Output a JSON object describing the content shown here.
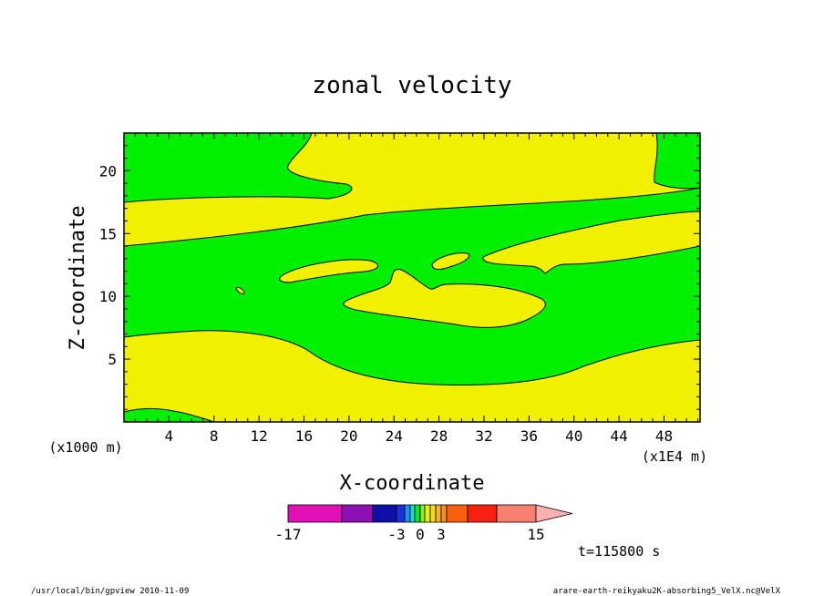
{
  "chart_data": {
    "type": "contour",
    "title": "zonal velocity",
    "xlabel": "X-coordinate",
    "ylabel": "Z-coordinate",
    "x_units": "(x1E4 m)",
    "y_units": "(x1000 m)",
    "xlim": [
      0,
      51.2
    ],
    "ylim": [
      0,
      23
    ],
    "x_ticks": [
      4,
      8,
      12,
      16,
      20,
      24,
      28,
      32,
      36,
      40,
      44,
      48
    ],
    "y_ticks": [
      5,
      10,
      15,
      20
    ],
    "colorbar": {
      "levels": [
        -17,
        -13,
        -9,
        -6,
        -5,
        -4,
        -3,
        -2,
        -1,
        0,
        1,
        2,
        3,
        5,
        7,
        11,
        15
      ],
      "labels": [
        "-17",
        "-3",
        "0",
        "3",
        "15"
      ],
      "label_values": [
        -17,
        -3,
        0,
        3,
        15
      ],
      "colors": [
        "#e010b4",
        "#8c10b4",
        "#1010a8",
        "#1830e0",
        "#2090f0",
        "#10e0d8",
        "#10e030",
        "#90f010",
        "#e8f000",
        "#f8d820",
        "#f8b030",
        "#f89020",
        "#f86010",
        "#f82010",
        "#f88070",
        "#f8b0b0"
      ],
      "extend": "max"
    },
    "regions": [
      {
        "value_range": [
          0,
          1
        ],
        "color": "#f0f000"
      },
      {
        "value_range": [
          -1,
          0
        ],
        "color": "#00f000"
      }
    ],
    "grid": false,
    "legend": "colorbar-bottom"
  },
  "annotations": {
    "time": "t=115800 s",
    "footer_left": "/usr/local/bin/gpview  2010-11-09",
    "footer_right": "arare-earth-reikyaku2K-absorbing5_VelX.nc@VelX"
  }
}
